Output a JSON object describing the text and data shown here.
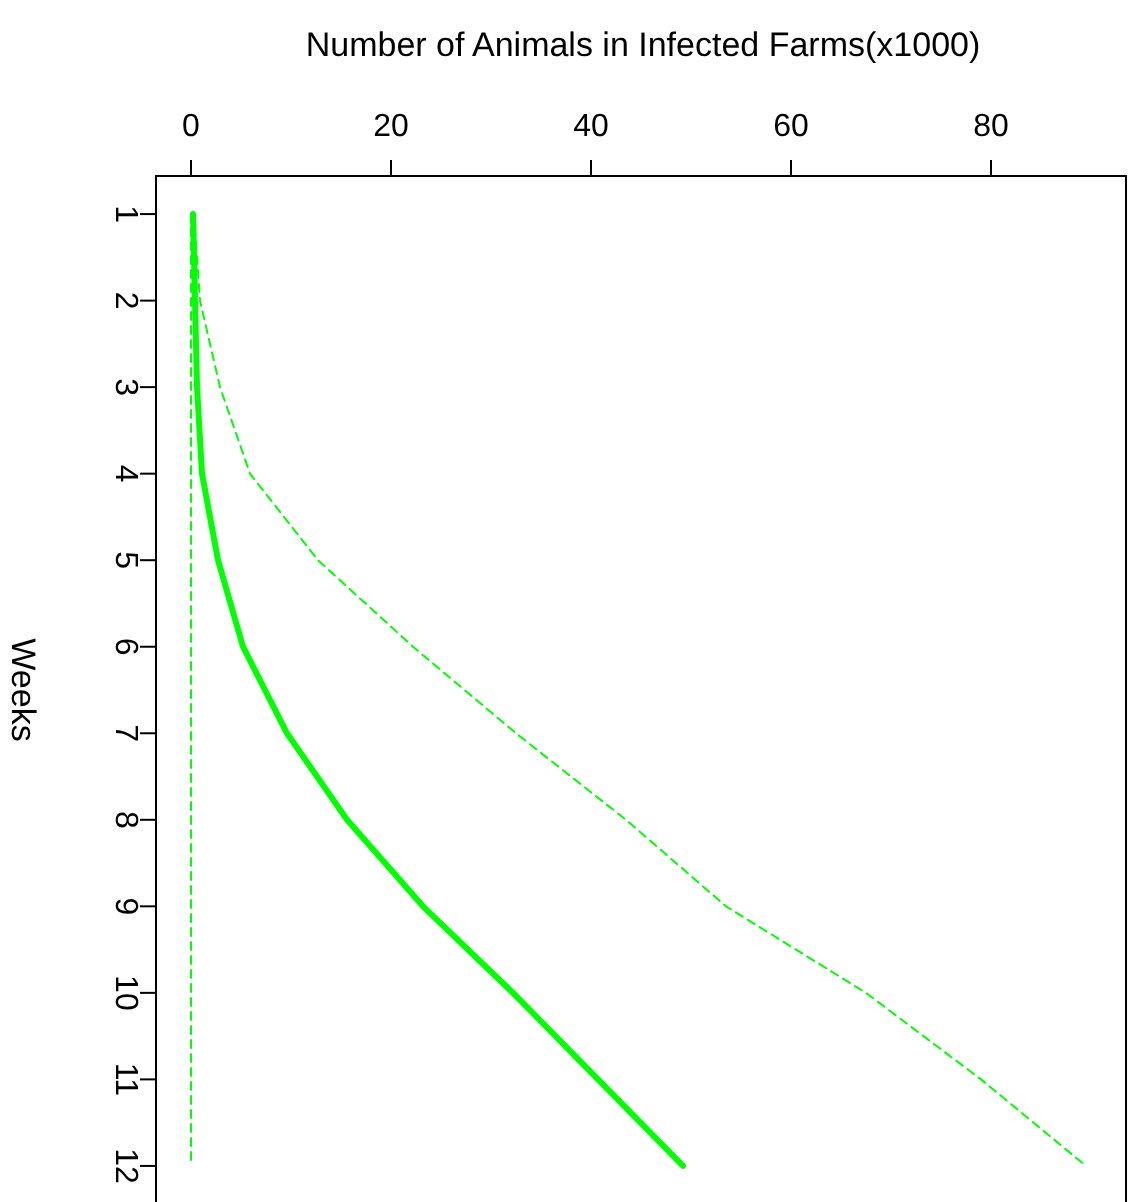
{
  "chart_data": {
    "type": "line",
    "orientation": "horizontal",
    "xlabel": "Number of Animals in Infected Farms(x1000)",
    "ylabel": "Weeks",
    "categories": [
      "1",
      "2",
      "3",
      "4",
      "5",
      "6",
      "7",
      "8",
      "9",
      "10",
      "11",
      "12"
    ],
    "xlim": [
      -3.5,
      93.5
    ],
    "xticks": [
      0,
      20,
      40,
      60,
      80
    ],
    "series": [
      {
        "color": "#00ff00",
        "line_style": "solid",
        "values": [
          0.2,
          0.4,
          0.6,
          1.1,
          2.7,
          5.2,
          9.6,
          15.6,
          23.2,
          32.2,
          40.7,
          49.2
        ]
      },
      {
        "color": "#00ff00",
        "line_style": "dashed",
        "values": [
          0.3,
          0.9,
          2.9,
          5.9,
          12.7,
          22.2,
          32.5,
          43.5,
          53.5,
          67.5,
          79,
          89.5
        ]
      },
      {
        "color": "#00ff00",
        "line_style": "dashed",
        "values": [
          0,
          0,
          0,
          0,
          0,
          0,
          0,
          0,
          0,
          0,
          0,
          0
        ]
      }
    ]
  }
}
